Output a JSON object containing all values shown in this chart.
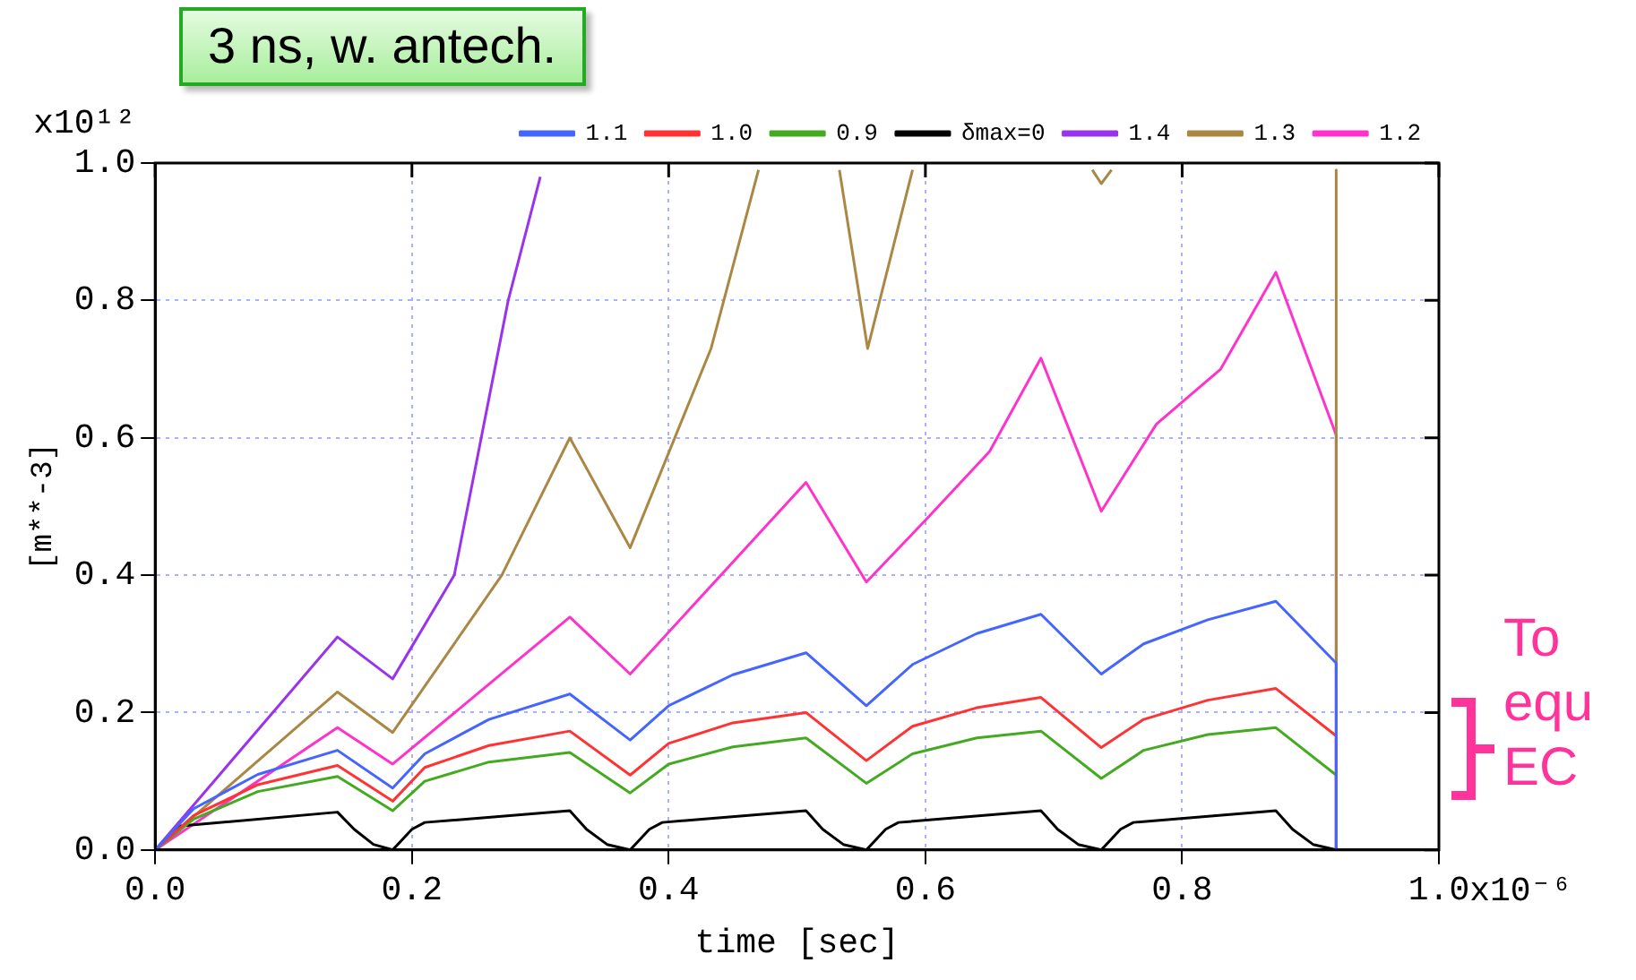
{
  "chart_data": {
    "type": "line",
    "xlabel": "time [sec]",
    "ylabel": "[m**-3]",
    "annotations": [
      "3 ns, w. antech.",
      "To equ EC",
      "x10¹²",
      "x10⁻⁶"
    ],
    "xlim": [
      0,
      1
    ],
    "ylim": [
      0,
      1
    ],
    "xticks": [
      {
        "value": 0,
        "label": "0.0"
      },
      0.2,
      0.4,
      0.6,
      0.8,
      {
        "value": 1,
        "label": "1.0"
      }
    ],
    "yticks": [
      {
        "value": 0,
        "label": "0.0"
      },
      0.2,
      0.4,
      0.6,
      0.8,
      {
        "value": 1,
        "label": "1.0"
      }
    ],
    "grid": true,
    "legend": "top right",
    "marker": "none",
    "line_style": "solid",
    "series": [
      {
        "name": "1.1",
        "color": "#4466ff",
        "x": [
          0,
          0.03,
          0.08,
          0.142,
          0.185,
          0.21,
          0.26,
          0.323,
          0.37,
          0.4,
          0.45,
          0.507,
          0.554,
          0.59,
          0.64,
          0.69,
          0.737,
          0.77,
          0.82,
          0.873,
          0.92,
          0.92
        ],
        "values": [
          0,
          0.06,
          0.11,
          0.145,
          0.09,
          0.14,
          0.19,
          0.227,
          0.16,
          0.21,
          0.255,
          0.287,
          0.21,
          0.27,
          0.315,
          0.343,
          0.256,
          0.3,
          0.335,
          0.362,
          0.272,
          0
        ]
      },
      {
        "name": "1.0",
        "color": "#ff3333",
        "x": [
          0,
          0.03,
          0.08,
          0.142,
          0.185,
          0.21,
          0.26,
          0.323,
          0.37,
          0.4,
          0.45,
          0.507,
          0.554,
          0.59,
          0.64,
          0.69,
          0.737,
          0.77,
          0.82,
          0.873,
          0.92,
          0.92
        ],
        "values": [
          0,
          0.05,
          0.095,
          0.123,
          0.071,
          0.12,
          0.152,
          0.173,
          0.109,
          0.155,
          0.185,
          0.2,
          0.13,
          0.18,
          0.207,
          0.222,
          0.149,
          0.19,
          0.218,
          0.235,
          0.166,
          0
        ]
      },
      {
        "name": "0.9",
        "color": "#44aa22",
        "x": [
          0,
          0.03,
          0.08,
          0.142,
          0.185,
          0.21,
          0.26,
          0.323,
          0.37,
          0.4,
          0.45,
          0.507,
          0.554,
          0.59,
          0.64,
          0.69,
          0.737,
          0.77,
          0.82,
          0.873,
          0.92,
          0.92
        ],
        "values": [
          0,
          0.045,
          0.085,
          0.107,
          0.057,
          0.1,
          0.128,
          0.142,
          0.083,
          0.125,
          0.15,
          0.163,
          0.097,
          0.14,
          0.163,
          0.173,
          0.104,
          0.145,
          0.168,
          0.178,
          0.109,
          0
        ]
      },
      {
        "name": "δmax=0",
        "color": "#000000",
        "x": [
          0,
          0.02,
          0.142,
          0.155,
          0.17,
          0.185,
          0.2,
          0.21,
          0.323,
          0.336,
          0.352,
          0.37,
          0.385,
          0.395,
          0.507,
          0.52,
          0.536,
          0.554,
          0.569,
          0.579,
          0.69,
          0.703,
          0.719,
          0.737,
          0.752,
          0.762,
          0.873,
          0.886,
          0.902,
          0.92
        ],
        "values": [
          0,
          0.035,
          0.055,
          0.03,
          0.008,
          0,
          0.03,
          0.04,
          0.057,
          0.03,
          0.008,
          0,
          0.03,
          0.04,
          0.057,
          0.03,
          0.008,
          0,
          0.03,
          0.04,
          0.057,
          0.03,
          0.008,
          0,
          0.03,
          0.04,
          0.057,
          0.03,
          0.008,
          0
        ]
      },
      {
        "name": "1.4",
        "color": "#9933ee",
        "x": [
          0,
          0.142,
          0.185,
          0.233,
          0.275,
          0.3
        ],
        "values": [
          0,
          0.31,
          0.249,
          0.4,
          0.8,
          0.98
        ]
      },
      {
        "name": "1.3",
        "color": "#aa8844",
        "x": [
          0,
          0.142,
          0.185,
          0.27,
          0.323,
          0.37,
          0.433,
          0.47,
          0.5,
          0.533,
          0.555,
          0.59,
          0.66,
          0.73,
          0.737,
          0.745,
          0.8,
          0.92,
          0.92
        ],
        "values": [
          0,
          0.23,
          0.171,
          0.4,
          0.6,
          0.44,
          0.73,
          0.99,
          null,
          0.99,
          0.73,
          0.99,
          null,
          0.99,
          0.97,
          0.99,
          null,
          0.99,
          0
        ]
      },
      {
        "name": "1.2",
        "color": "#ff33cc",
        "x": [
          0,
          0.142,
          0.185,
          0.323,
          0.37,
          0.507,
          0.554,
          0.6,
          0.65,
          0.69,
          0.737,
          0.78,
          0.83,
          0.873,
          0.92,
          0.92
        ],
        "values": [
          0,
          0.178,
          0.125,
          0.339,
          0.256,
          0.535,
          0.39,
          0.48,
          0.58,
          0.716,
          0.493,
          0.62,
          0.7,
          0.841,
          0.604,
          0
        ]
      }
    ]
  }
}
